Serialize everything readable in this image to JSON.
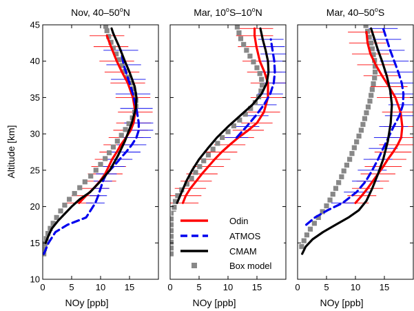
{
  "chart_data": {
    "type": "line",
    "ylabel": "Altitude [km]",
    "ylim": [
      10,
      45
    ],
    "yticks": [
      10,
      15,
      20,
      25,
      30,
      35,
      40,
      45
    ],
    "xticks": [
      0,
      5,
      10,
      15
    ],
    "legend": {
      "placement": "bottom-right of middle panel",
      "entries": [
        {
          "name": "Odin",
          "color": "#ff0000",
          "style": "solid"
        },
        {
          "name": "ATMOS",
          "color": "#0000ee",
          "style": "dashed"
        },
        {
          "name": "CMAM",
          "color": "#000000",
          "style": "solid"
        },
        {
          "name": "Box model",
          "color": "#888888",
          "style": "square-markers"
        }
      ]
    },
    "panels": [
      {
        "title": "Nov, 40–50",
        "title_suffix": "N",
        "xlabel": "NOy [ppb]",
        "xlim": [
          0,
          20
        ],
        "series": [
          {
            "name": "Odin",
            "color": "#ff0000",
            "x": [
              6.3,
              7.5,
              8.8,
              9.9,
              10.8,
              11.4,
              12.0,
              12.8,
              13.5,
              14.4,
              15.2,
              15.7,
              16.0,
              15.6,
              14.7,
              13.7,
              12.8,
              11.8,
              11.1
            ],
            "y": [
              20.5,
              21.5,
              22.5,
              23.5,
              24.5,
              25.5,
              26.5,
              27.5,
              28.5,
              29.5,
              30.5,
              31.5,
              33,
              35,
              37,
              38.5,
              40,
              42,
              43.5
            ],
            "xerr": [
              2.3,
              2.5,
              2.7,
              2.8,
              3.0,
              3.0,
              3.0,
              3.0,
              3.0,
              3.0,
              3.0,
              3.0,
              3.0,
              3.0,
              3.0,
              3.0,
              3.0,
              3.0,
              3.0
            ]
          },
          {
            "name": "ATMOS",
            "color": "#0000ee",
            "x": [
              0.2,
              1.0,
              2.2,
              4.3,
              7.5,
              9.1,
              9.6,
              10.0,
              10.4,
              11.0,
              12.2,
              13.3,
              14.4,
              15.4,
              16.2,
              16.6,
              16.6,
              16.2,
              15.6,
              14.8,
              14.0,
              13.5
            ],
            "y": [
              13.5,
              15.0,
              16.5,
              17.5,
              18.5,
              20.5,
              21.5,
              22.5,
              23.5,
              24.5,
              25.5,
              26.5,
              27.5,
              28.5,
              29.5,
              30.5,
              31.5,
              33.5,
              35.5,
              37.5,
              39.5,
              41.5
            ],
            "xerr": [
              0,
              0,
              0,
              0,
              0,
              1.6,
              1.5,
              1.5,
              1.6,
              1.8,
              2.0,
              2.2,
              2.5,
              2.5,
              2.5,
              2.5,
              2.5,
              2.8,
              3.0,
              3.0,
              3.0,
              3.0
            ]
          },
          {
            "name": "CMAM",
            "color": "#000000",
            "x": [
              0.5,
              1.0,
              1.6,
              2.6,
              3.8,
              5.0,
              6.4,
              8.2,
              10.0,
              11.6,
              13.0,
              14.2,
              15.4,
              16.1,
              16.2,
              15.9,
              15.0,
              14.2,
              13.2,
              12.2,
              11.9
            ],
            "y": [
              15.0,
              16.0,
              17.0,
              18.0,
              19.0,
              20.0,
              21.0,
              22.0,
              23.5,
              25.0,
              27.0,
              29.0,
              31.5,
              33.5,
              35.0,
              36.5,
              38.5,
              40.0,
              42.0,
              43.8,
              44.5
            ],
            "xerr": []
          },
          {
            "name": "Box model",
            "color": "#888888",
            "x": [
              0.2,
              0.3,
              0.4,
              0.6,
              0.9,
              1.3,
              1.8,
              2.4,
              3.1,
              3.8,
              4.6,
              5.5,
              6.4,
              7.3,
              8.3,
              9.2,
              10.0,
              10.8,
              11.5,
              12.2,
              12.9,
              13.6,
              14.3,
              14.9,
              15.5,
              15.9,
              16.1,
              16.1,
              15.9,
              15.6,
              15.2,
              14.7,
              14.2,
              13.7,
              13.2,
              12.7,
              12.2,
              11.8,
              11.4,
              11.1,
              10.9,
              10.7,
              10.6
            ],
            "y": [
              13.5,
              14.2,
              14.9,
              15.6,
              16.3,
              17.0,
              17.7,
              18.5,
              19.4,
              20.2,
              21.0,
              21.8,
              22.6,
              23.4,
              24.2,
              25.0,
              25.8,
              26.6,
              27.4,
              28.2,
              29.0,
              29.8,
              30.6,
              31.4,
              32.2,
              33.0,
              33.8,
              34.6,
              35.4,
              36.2,
              37.0,
              37.8,
              38.6,
              39.4,
              40.2,
              41.0,
              41.8,
              42.6,
              43.4,
              44.2,
              44.8,
              45.4,
              46.0
            ],
            "xerr": []
          }
        ]
      },
      {
        "title": "Mar, 10",
        "title_mid": "S–10",
        "title_suffix": "N",
        "xlabel": "NOy [ppb]",
        "xlim": [
          0,
          20
        ],
        "series": [
          {
            "name": "Odin",
            "color": "#ff0000",
            "x": [
              2.2,
              2.7,
              3.5,
              4.5,
              5.5,
              6.6,
              7.7,
              8.9,
              10.3,
              11.8,
              13.5,
              15.0,
              16.2,
              16.9,
              16.9,
              16.3,
              15.5,
              14.9,
              14.6,
              14.6
            ],
            "y": [
              20.5,
              21.5,
              22.5,
              23.5,
              24.5,
              25.5,
              26.5,
              27.5,
              28.5,
              29.5,
              30.5,
              31.5,
              33.0,
              35.0,
              37.0,
              38.5,
              40.0,
              42.0,
              43.5,
              44.5
            ],
            "xerr": [
              2.7,
              2.7,
              2.7,
              2.7,
              2.7,
              2.7,
              2.7,
              2.7,
              2.7,
              2.7,
              2.7,
              2.7,
              2.8,
              3.0,
              3.0,
              3.0,
              3.0,
              3.2,
              3.2,
              3.2
            ]
          },
          {
            "name": "ATMOS",
            "color": "#0000ee",
            "x": [
              11.5,
              13.2,
              14.8,
              16.2,
              17.3,
              17.9,
              18.1,
              18.0,
              17.8,
              17.6,
              17.4
            ],
            "y": [
              29.5,
              31.0,
              32.5,
              34.0,
              35.5,
              37.0,
              38.5,
              40.0,
              41.0,
              42.0,
              43.0
            ],
            "xerr": [
              2.0,
              2.2,
              2.2,
              2.2,
              2.2,
              2.2,
              2.2,
              2.2,
              2.2,
              2.2,
              2.2
            ]
          },
          {
            "name": "CMAM",
            "color": "#000000",
            "x": [
              1.2,
              2.0,
              2.8,
              3.8,
              5.0,
              6.5,
              8.1,
              10.0,
              12.1,
              14.2,
              15.8,
              16.7,
              17.0,
              16.9,
              16.5,
              16.0,
              15.6
            ],
            "y": [
              20.5,
              22.0,
              23.5,
              25.0,
              26.5,
              28.0,
              29.5,
              31.0,
              32.5,
              34.0,
              35.5,
              37.0,
              38.5,
              40.0,
              41.5,
              43.0,
              44.5
            ],
            "xerr": []
          },
          {
            "name": "Box model",
            "color": "#888888",
            "x": [
              0.5,
              0.5,
              0.5,
              0.5,
              0.5,
              0.5,
              0.5,
              0.6,
              0.7,
              0.9,
              1.3,
              2.0,
              2.9,
              3.7,
              4.4,
              5.1,
              5.8,
              6.6,
              7.4,
              8.2,
              9.0,
              10.0,
              11.0,
              12.0,
              13.0,
              13.9,
              14.7,
              15.3,
              15.7,
              15.9,
              15.8,
              15.5,
              15.0,
              14.4,
              13.8,
              13.2,
              12.7,
              12.2,
              11.9,
              11.6
            ],
            "y": [
              13.5,
              14.3,
              15.1,
              15.9,
              16.7,
              17.5,
              18.3,
              19.1,
              19.9,
              20.7,
              21.5,
              22.3,
              23.1,
              23.9,
              24.7,
              25.5,
              26.3,
              27.1,
              27.9,
              28.7,
              29.5,
              30.3,
              31.1,
              31.9,
              32.7,
              33.5,
              34.3,
              35.1,
              35.9,
              36.7,
              37.5,
              38.3,
              39.1,
              39.9,
              40.7,
              41.5,
              42.3,
              43.1,
              43.9,
              44.7
            ],
            "xerr": []
          }
        ]
      },
      {
        "title": "Mar, 40–50",
        "title_suffix": "S",
        "xlabel": "NOy [ppb]",
        "xlim": [
          0,
          20
        ],
        "series": [
          {
            "name": "Odin",
            "color": "#ff0000",
            "x": [
              10.0,
              11.1,
              12.1,
              13.0,
              13.9,
              14.8,
              15.6,
              16.5,
              17.3,
              17.9,
              18.1,
              17.8,
              16.9,
              15.8,
              14.6,
              13.5,
              12.6,
              12.1,
              11.9
            ],
            "y": [
              20.5,
              21.5,
              22.5,
              23.5,
              24.5,
              25.5,
              26.5,
              27.5,
              28.5,
              29.5,
              31.0,
              33.0,
              35.0,
              36.5,
              38.0,
              39.5,
              41.0,
              42.5,
              44.0
            ],
            "xerr": [
              2.3,
              2.5,
              2.7,
              2.8,
              3.0,
              3.2,
              3.2,
              3.2,
              3.2,
              3.2,
              3.2,
              3.2,
              3.2,
              3.2,
              3.2,
              3.2,
              3.2,
              3.2,
              3.2
            ]
          },
          {
            "name": "ATMOS",
            "color": "#0000ee",
            "x": [
              1.5,
              3.0,
              5.2,
              7.8,
              10.2,
              11.8,
              12.9,
              13.9,
              14.8,
              15.7,
              16.6,
              17.6,
              18.2,
              18.3,
              18.0,
              17.4,
              16.7,
              16.0,
              15.4,
              14.8
            ],
            "y": [
              17.5,
              18.5,
              19.5,
              20.5,
              22.0,
              23.5,
              25.0,
              26.5,
              28.0,
              29.5,
              31.0,
              32.5,
              34.0,
              35.5,
              37.0,
              38.5,
              40.0,
              41.5,
              43.0,
              44.5
            ],
            "xerr": [
              0,
              0,
              0,
              2.0,
              2.2,
              2.4,
              2.5,
              2.5,
              2.5,
              2.5,
              2.5,
              2.5,
              2.5,
              2.5,
              2.5,
              2.5,
              2.5,
              2.5,
              2.5,
              2.5
            ]
          },
          {
            "name": "CMAM",
            "color": "#000000",
            "x": [
              0.8,
              1.4,
              2.6,
              4.4,
              6.6,
              8.8,
              10.6,
              11.9,
              12.9,
              13.9,
              14.8,
              15.6,
              16.1,
              16.3,
              16.0,
              15.4,
              14.6,
              13.9,
              13.3,
              12.7
            ],
            "y": [
              13.5,
              14.5,
              15.5,
              16.5,
              17.5,
              18.5,
              19.5,
              20.8,
              22.5,
              24.5,
              26.5,
              29.0,
              31.5,
              34.0,
              36.0,
              38.0,
              40.0,
              41.5,
              43.0,
              44.5
            ],
            "xerr": []
          },
          {
            "name": "Box model",
            "color": "#888888",
            "x": [
              0.7,
              1.1,
              1.6,
              2.2,
              2.9,
              3.6,
              4.3,
              5.0,
              5.6,
              6.1,
              6.6,
              7.1,
              7.6,
              8.0,
              8.5,
              9.0,
              9.4,
              9.8,
              10.2,
              10.6,
              11.0,
              11.3,
              11.6,
              11.9,
              12.2,
              12.5,
              12.7,
              12.9,
              13.1,
              13.3,
              13.4,
              13.4,
              13.3,
              13.1,
              12.9,
              12.7,
              12.4,
              12.1,
              11.8,
              11.6
            ],
            "y": [
              14.5,
              15.3,
              16.1,
              16.9,
              17.7,
              18.5,
              19.3,
              20.1,
              20.9,
              21.7,
              22.5,
              23.3,
              24.1,
              24.9,
              25.7,
              26.5,
              27.3,
              28.1,
              28.9,
              29.7,
              30.5,
              31.3,
              32.1,
              32.9,
              33.7,
              34.5,
              35.3,
              36.1,
              36.9,
              37.7,
              38.5,
              39.3,
              40.1,
              40.9,
              41.7,
              42.5,
              43.3,
              44.1,
              44.9,
              45.7
            ],
            "xerr": []
          }
        ]
      }
    ]
  }
}
